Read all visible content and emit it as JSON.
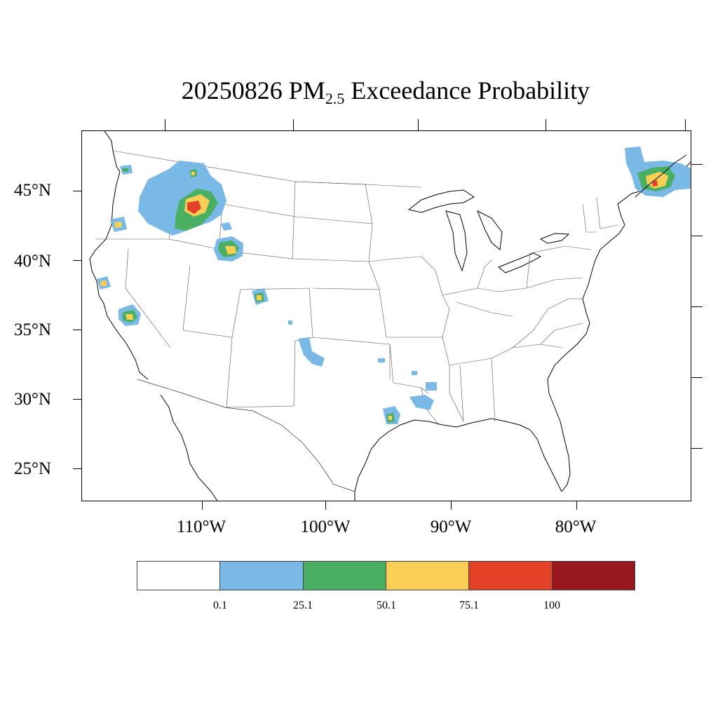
{
  "title": {
    "prefix": "20250826 PM",
    "subscript": "2.5",
    "suffix": " Exceedance Probability"
  },
  "lat_labels": [
    "45°N",
    "40°N",
    "35°N",
    "30°N",
    "25°N"
  ],
  "lon_labels": [
    "110°W",
    "100°W",
    "90°W",
    "80°W"
  ],
  "colorbar": {
    "colors": [
      "#ffffff",
      "#7ab8e6",
      "#4aaf62",
      "#f9cf55",
      "#e34128",
      "#96171d"
    ],
    "labels": [
      "0.1",
      "25.1",
      "50.1",
      "75.1",
      "100"
    ]
  },
  "features": {
    "state_lines": "#000000",
    "coastline": "#000000"
  }
}
